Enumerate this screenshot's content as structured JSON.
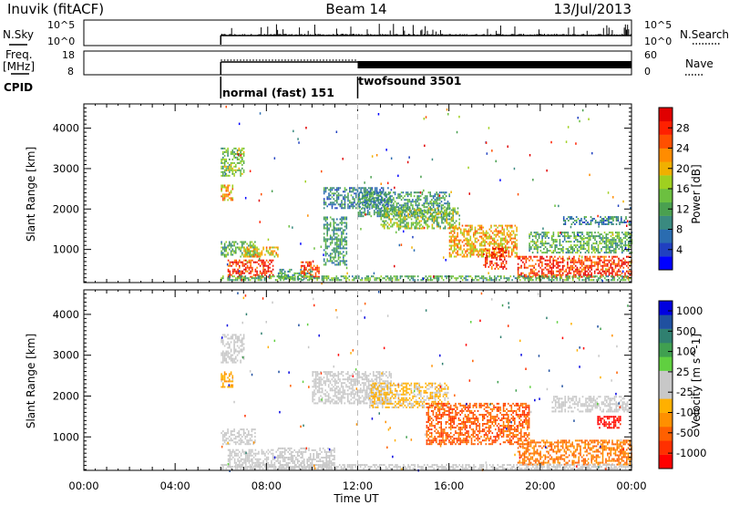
{
  "header": {
    "station": "Inuvik (fitACF)",
    "beam": "Beam 14",
    "date": "13/Jul/2013"
  },
  "top_panels": {
    "nsky_label": "N.Sky",
    "nsky_ticks": [
      "10^5",
      "10^0"
    ],
    "nsearch_label": "N.Search",
    "nsearch_ticks": [
      "10^5",
      "10^0"
    ],
    "freq_label": "Freq.",
    "freq_unit": "[MHz]",
    "freq_ticks": [
      "18",
      "8"
    ],
    "nave_label": "Nave",
    "nave_ticks": [
      "60",
      "0"
    ],
    "cpid_label": "CPID",
    "modes": [
      {
        "label": "normal (fast) 151",
        "start": "06:00",
        "end": "12:00"
      },
      {
        "label": "twofsound 3501",
        "start": "12:00",
        "end": "24:00"
      }
    ]
  },
  "x_axis": {
    "label": "Time UT",
    "ticks": [
      "00:00",
      "04:00",
      "08:00",
      "12:00",
      "16:00",
      "20:00",
      "00:00"
    ]
  },
  "colorbars": {
    "power": {
      "label": "Power [dB]",
      "ticks": [
        "28",
        "24",
        "20",
        "16",
        "12",
        "8",
        "4"
      ],
      "colors": [
        "#0000ff",
        "#2040c0",
        "#2a6cb0",
        "#3a8a80",
        "#4aa050",
        "#6cc040",
        "#9fd020",
        "#f0b000",
        "#ff8c00",
        "#ff5000",
        "#ff2000",
        "#e00000"
      ]
    },
    "velocity": {
      "label": "Velocity [m s^-1]",
      "ticks": [
        "1000",
        "500",
        "100",
        "25",
        "-25",
        "-100",
        "-500",
        "-1000"
      ],
      "colors": [
        "#ff0000",
        "#ff3000",
        "#ff6000",
        "#ff9000",
        "#ffb000",
        "#c8c8c8",
        "#c8c8c8",
        "#60d040",
        "#40a050",
        "#308070",
        "#2050a0",
        "#0000e0"
      ]
    }
  },
  "chart_data": [
    {
      "type": "heatmap",
      "name": "power",
      "ylabel": "Slant Range [km]",
      "y_ticks": [
        "1000",
        "2000",
        "3000",
        "4000"
      ],
      "ylim": [
        180,
        4600
      ],
      "xlim": [
        0,
        24
      ],
      "value_range": [
        0,
        30
      ],
      "blobs": [
        {
          "t": [
            6.0,
            7.0
          ],
          "r": [
            2800,
            3500
          ],
          "v": 14
        },
        {
          "t": [
            6.0,
            6.5
          ],
          "r": [
            2200,
            2600
          ],
          "v": 20
        },
        {
          "t": [
            6.0,
            7.5
          ],
          "r": [
            800,
            1200
          ],
          "v": 12
        },
        {
          "t": [
            6.3,
            8.3
          ],
          "r": [
            300,
            750
          ],
          "v": 26
        },
        {
          "t": [
            7.0,
            8.5
          ],
          "r": [
            800,
            1050
          ],
          "v": 18
        },
        {
          "t": [
            8.5,
            10.0
          ],
          "r": [
            250,
            500
          ],
          "v": 10
        },
        {
          "t": [
            9.5,
            10.3
          ],
          "r": [
            300,
            700
          ],
          "v": 24
        },
        {
          "t": [
            10.5,
            11.5
          ],
          "r": [
            600,
            1800
          ],
          "v": 10
        },
        {
          "t": [
            10.5,
            13.5
          ],
          "r": [
            2000,
            2500
          ],
          "v": 8
        },
        {
          "t": [
            12.0,
            16.0
          ],
          "r": [
            1800,
            2400
          ],
          "v": 10
        },
        {
          "t": [
            13.0,
            16.5
          ],
          "r": [
            1500,
            2000
          ],
          "v": 14
        },
        {
          "t": [
            16.0,
            19.0
          ],
          "r": [
            800,
            1600
          ],
          "v": 20
        },
        {
          "t": [
            17.5,
            18.5
          ],
          "r": [
            500,
            1000
          ],
          "v": 26
        },
        {
          "t": [
            19.0,
            24.0
          ],
          "r": [
            300,
            800
          ],
          "v": 26
        },
        {
          "t": [
            19.5,
            24.0
          ],
          "r": [
            900,
            1400
          ],
          "v": 12
        },
        {
          "t": [
            21.0,
            24.0
          ],
          "r": [
            1600,
            1800
          ],
          "v": 8
        },
        {
          "t": [
            6.0,
            24.0
          ],
          "r": [
            220,
            330
          ],
          "v": 12
        }
      ]
    },
    {
      "type": "heatmap",
      "name": "velocity",
      "ylabel": "Slant Range [km]",
      "y_ticks": [
        "1000",
        "2000",
        "3000",
        "4000"
      ],
      "ylim": [
        180,
        4600
      ],
      "xlim": [
        0,
        24
      ],
      "value_range": [
        -1000,
        1000
      ],
      "blobs": [
        {
          "t": [
            6.0,
            7.0
          ],
          "r": [
            2800,
            3500
          ],
          "v": 0
        },
        {
          "t": [
            6.0,
            6.5
          ],
          "r": [
            2200,
            2600
          ],
          "v": -300
        },
        {
          "t": [
            6.0,
            7.5
          ],
          "r": [
            800,
            1200
          ],
          "v": 0
        },
        {
          "t": [
            6.3,
            8.5
          ],
          "r": [
            250,
            700
          ],
          "v": 0
        },
        {
          "t": [
            8.5,
            11.0
          ],
          "r": [
            200,
            700
          ],
          "v": 0
        },
        {
          "t": [
            10.0,
            13.5
          ],
          "r": [
            1800,
            2600
          ],
          "v": 0
        },
        {
          "t": [
            12.5,
            16.0
          ],
          "r": [
            1700,
            2300
          ],
          "v": -200
        },
        {
          "t": [
            15.0,
            19.5
          ],
          "r": [
            800,
            1800
          ],
          "v": -600
        },
        {
          "t": [
            19.0,
            24.0
          ],
          "r": [
            300,
            900
          ],
          "v": -500
        },
        {
          "t": [
            20.5,
            24.0
          ],
          "r": [
            1600,
            2000
          ],
          "v": 0
        },
        {
          "t": [
            6.0,
            24.0
          ],
          "r": [
            200,
            320
          ],
          "v": 0
        },
        {
          "t": [
            22.5,
            23.5
          ],
          "r": [
            1200,
            1500
          ],
          "v": -900
        }
      ]
    }
  ]
}
